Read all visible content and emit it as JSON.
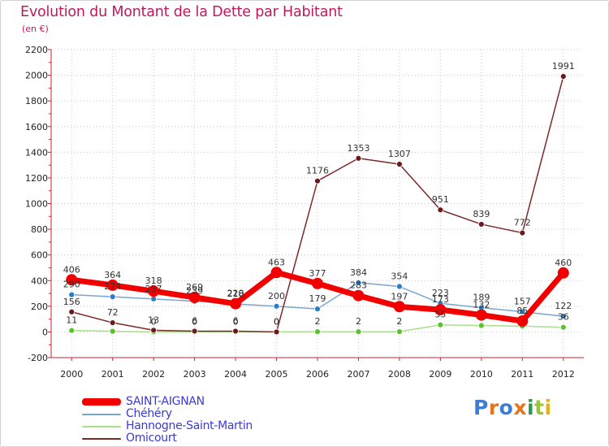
{
  "header": {
    "title": "Evolution du Montant de la Dette par Habitant",
    "subtitle": "(en €)"
  },
  "colors": {
    "title": "#c0185f",
    "legend_text": "#3a3ad4",
    "grid": "#c8c8c8"
  },
  "logo": {
    "letters": [
      "P",
      "r",
      "o",
      "x",
      "i",
      "t",
      "i"
    ],
    "colors": [
      "#3b7dd8",
      "#e8731a",
      "#3b7dd8",
      "#e8731a",
      "#2a9a4a",
      "#9ac43a",
      "#e8b01a"
    ]
  },
  "chart_data": {
    "type": "line",
    "title": "Evolution du Montant de la Dette par Habitant",
    "subtitle": "(en €)",
    "xlabel": "",
    "ylabel": "",
    "categories": [
      "2000",
      "2001",
      "2002",
      "2003",
      "2004",
      "2005",
      "2006",
      "2007",
      "2008",
      "2009",
      "2010",
      "2011",
      "2012"
    ],
    "ylim": [
      -200,
      2200
    ],
    "yticks": [
      -200,
      0,
      200,
      400,
      600,
      800,
      1000,
      1200,
      1400,
      1600,
      1800,
      2000,
      2200
    ],
    "grid": true,
    "legend_position": "bottom-left",
    "series": [
      {
        "name": "SAINT-AIGNAN",
        "color": "#f20000",
        "point_color": "#f20000",
        "width": 7,
        "marker": 7,
        "values": [
          406,
          364,
          318,
          269,
          220,
          463,
          377,
          283,
          197,
          173,
          132,
          85,
          460
        ],
        "labels": [
          "406",
          "364",
          "318",
          "269",
          "220",
          "463",
          "377",
          "283",
          "197",
          "173",
          "132",
          "85",
          "460"
        ]
      },
      {
        "name": "Chéhéry",
        "color": "#7aa6cc",
        "point_color": "#2d7cc4",
        "width": 1.5,
        "marker": 3.5,
        "values": [
          290,
          274,
          257,
          239,
          218,
          200,
          179,
          384,
          354,
          223,
          189,
          157,
          122
        ],
        "labels": [
          "290",
          "274",
          "257",
          "239",
          "218",
          "200",
          "179",
          "384",
          "354",
          "223",
          "189",
          "157",
          "122"
        ]
      },
      {
        "name": "Hannogne-Saint-Martin",
        "color": "#a8e08a",
        "point_color": "#5cc030",
        "width": 1.5,
        "marker": 3.5,
        "values": [
          11,
          5,
          0,
          0,
          0,
          0,
          2,
          2,
          2,
          55,
          50,
          45,
          36
        ],
        "labels": [
          "11",
          "",
          "0",
          "0",
          "0",
          "0",
          "2",
          "2",
          "2",
          "55",
          "",
          "",
          "36"
        ]
      },
      {
        "name": "Omicourt",
        "color": "#7a2a2a",
        "point_color": "#6a1a1a",
        "width": 1.5,
        "marker": 3.5,
        "values": [
          156,
          72,
          13,
          6,
          6,
          0,
          1176,
          1353,
          1307,
          951,
          839,
          772,
          1991
        ],
        "labels": [
          "156",
          "72",
          "13",
          "6",
          "6",
          "0",
          "1176",
          "1353",
          "1307",
          "951",
          "839",
          "772",
          "1991"
        ]
      }
    ]
  }
}
